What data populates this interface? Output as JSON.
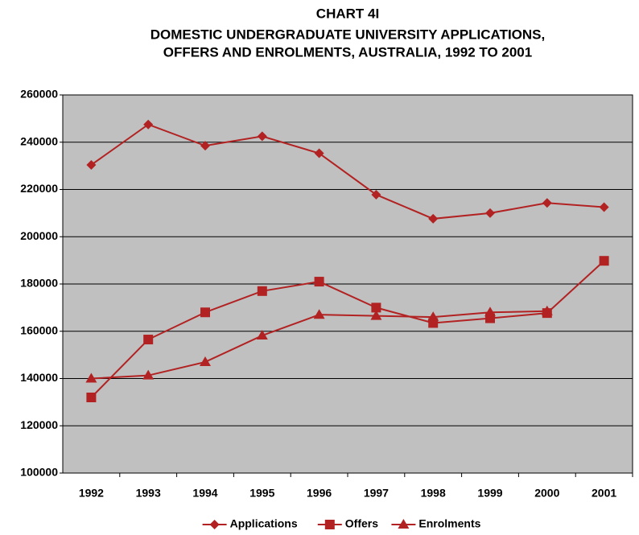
{
  "chart_data": {
    "type": "line",
    "title": [
      "CHART 4I",
      "DOMESTIC UNDERGRADUATE UNIVERSITY APPLICATIONS,",
      "OFFERS AND ENROLMENTS, AUSTRALIA, 1992 TO 2001"
    ],
    "categories": [
      "1992",
      "1993",
      "1994",
      "1995",
      "1996",
      "1997",
      "1998",
      "1999",
      "2000",
      "2001"
    ],
    "series": [
      {
        "name": "Applications",
        "color": "#b22222",
        "marker": "diamond",
        "values": [
          230400,
          247500,
          238500,
          242500,
          235300,
          217800,
          207600,
          210000,
          214300,
          212500
        ]
      },
      {
        "name": "Offers",
        "color": "#b22222",
        "marker": "square",
        "values": [
          132000,
          156500,
          168000,
          177000,
          181000,
          170000,
          163500,
          165500,
          167700,
          189800
        ]
      },
      {
        "name": "Enrolments",
        "color": "#b22222",
        "marker": "triangle",
        "values": [
          140000,
          141300,
          147000,
          158200,
          167000,
          166500,
          166000,
          168000,
          168500,
          null
        ]
      }
    ],
    "ylim": [
      100000,
      260000
    ],
    "yticks": [
      100000,
      120000,
      140000,
      160000,
      180000,
      200000,
      220000,
      240000,
      260000
    ],
    "grid": true,
    "legend": "bottom",
    "background": "#c0c0c0"
  }
}
